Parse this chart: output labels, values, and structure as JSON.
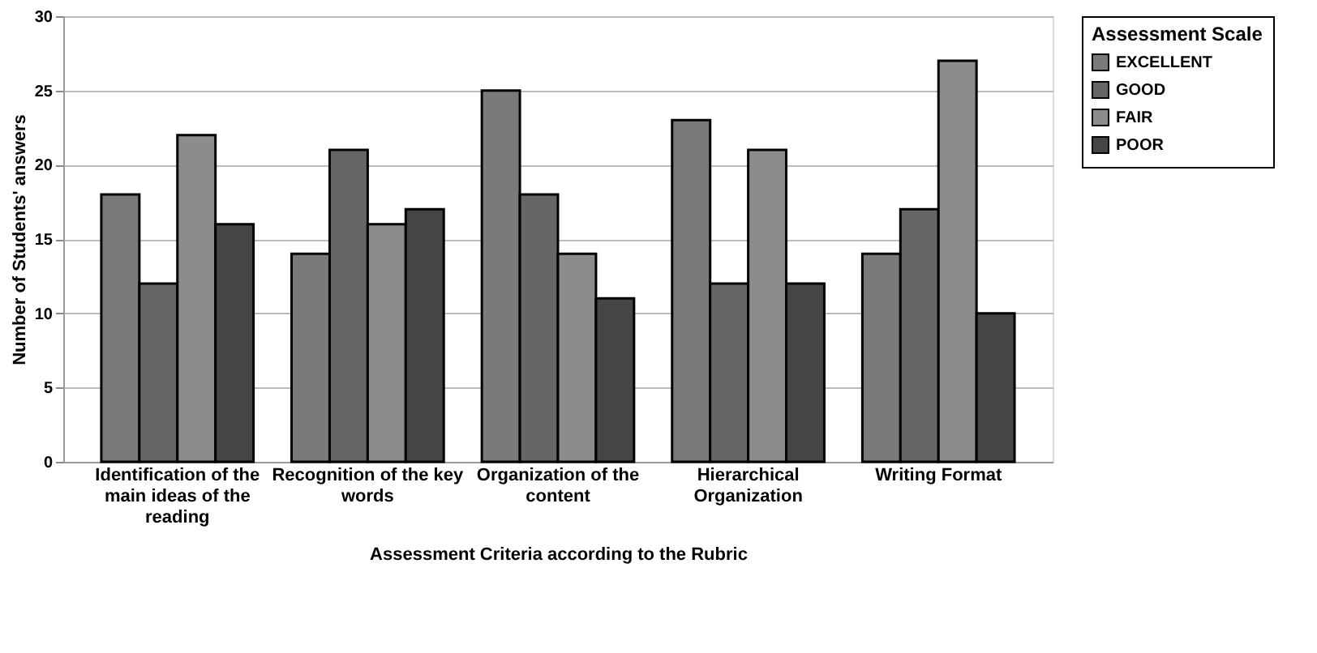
{
  "chart_data": {
    "type": "bar",
    "categories": [
      "Identification of the main ideas of the reading",
      "Recognition of the key words",
      "Organization of the content",
      "Hierarchical Organization",
      "Writing Format"
    ],
    "series": [
      {
        "name": "EXCELLENT",
        "color": "#7a7a7a",
        "values": [
          18,
          14,
          25,
          23,
          14
        ]
      },
      {
        "name": "GOOD",
        "color": "#666666",
        "values": [
          12,
          21,
          18,
          12,
          17
        ]
      },
      {
        "name": "FAIR",
        "color": "#8c8c8c",
        "values": [
          22,
          16,
          14,
          21,
          27
        ]
      },
      {
        "name": "POOR",
        "color": "#454545",
        "values": [
          16,
          17,
          11,
          12,
          10
        ]
      }
    ],
    "xlabel": "Assessment Criteria according to the Rubric",
    "ylabel": "Number of Students' answers",
    "legend_title": "Assessment Scale",
    "legend": "right",
    "ylim": [
      0,
      30
    ],
    "yticks": [
      0,
      5,
      10,
      15,
      20,
      25,
      30
    ],
    "grid": "y"
  }
}
